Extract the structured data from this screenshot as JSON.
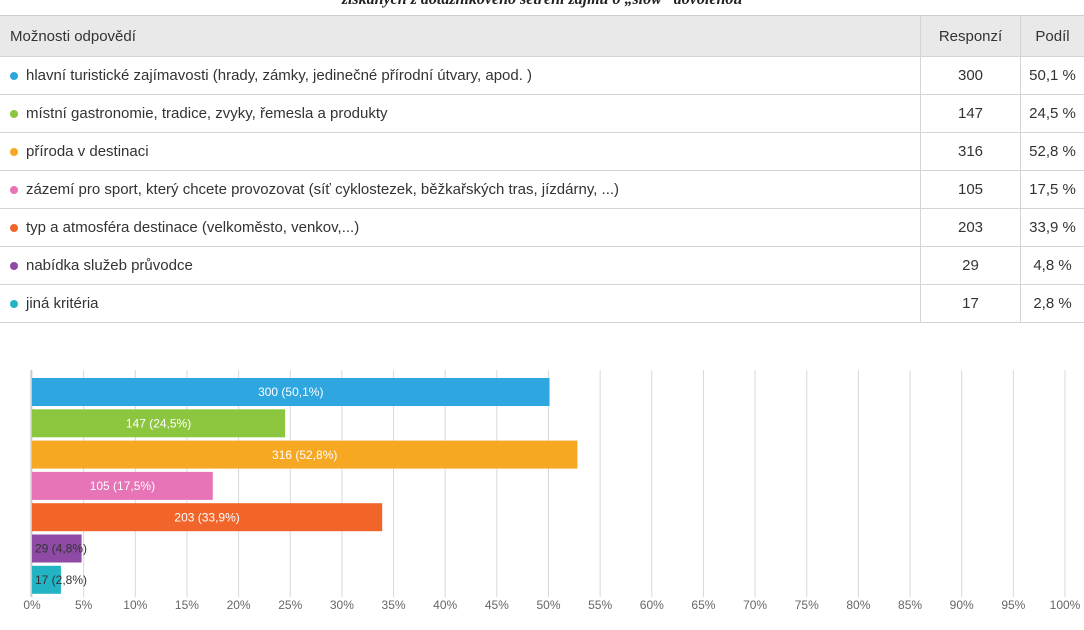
{
  "caption": "získaných z dotazníkového šetření zájmu o „slow“ dovolenou",
  "table": {
    "header": [
      "Možnosti odpovědí",
      "Responzí",
      "Podíl"
    ],
    "rows": [
      [
        "hlavní turistické zajímavosti (hrady, zámky, jedinečné přírodní útvary, apod. )",
        "300",
        "50,1 %"
      ],
      [
        "místní gastronomie, tradice, zvyky, řemesla a produkty",
        "147",
        "24,5 %"
      ],
      [
        "příroda v destinaci",
        "316",
        "52,8 %"
      ],
      [
        "zázemí pro sport, který chcete provozovat (síť cyklostezek, běžkařských tras, jízdárny, ...)",
        "105",
        "17,5 %"
      ],
      [
        "typ a atmosféra destinace (velkoměsto, venkov,...)",
        "203",
        "33,9 %"
      ],
      [
        "nabídka služeb průvodce",
        "29",
        "4,8 %"
      ],
      [
        "jiná kritéria",
        "17",
        "2,8 %"
      ]
    ]
  },
  "chart_data": {
    "type": "bar",
    "orientation": "horizontal",
    "values": [
      50.1,
      24.5,
      52.8,
      17.5,
      33.9,
      4.8,
      2.8
    ],
    "value_labels": [
      "300 (50,1%)",
      "147 (24,5%)",
      "316 (52,8%)",
      "105 (17,5%)",
      "203 (33,9%)",
      "29 (4,8%)",
      "17 (2,8%)"
    ],
    "colors": [
      "#2ea6df",
      "#8cc63f",
      "#f7a823",
      "#e674b6",
      "#f1652a",
      "#8e4aa5",
      "#22b3c5"
    ],
    "xlim": [
      0,
      100
    ],
    "grid": true,
    "xticks": [
      {
        "value": 0,
        "label": "0%"
      },
      {
        "value": 5,
        "label": "5%"
      },
      {
        "value": 10,
        "label": "10%"
      },
      {
        "value": 15,
        "label": "15%"
      },
      {
        "value": 20,
        "label": "20%"
      },
      {
        "value": 25,
        "label": "25%"
      },
      {
        "value": 30,
        "label": "30%"
      },
      {
        "value": 35,
        "label": "35%"
      },
      {
        "value": 40,
        "label": "40%"
      },
      {
        "value": 45,
        "label": "45%"
      },
      {
        "value": 50,
        "label": "50%"
      },
      {
        "value": 55,
        "label": "55%"
      },
      {
        "value": 60,
        "label": "60%"
      },
      {
        "value": 65,
        "label": "65%"
      },
      {
        "value": 70,
        "label": "70%"
      },
      {
        "value": 75,
        "label": "75%"
      },
      {
        "value": 80,
        "label": "80%"
      },
      {
        "value": 85,
        "label": "85%"
      },
      {
        "value": 90,
        "label": "90%"
      },
      {
        "value": 95,
        "label": "95%"
      },
      {
        "value": 100,
        "label": "100%"
      }
    ]
  }
}
